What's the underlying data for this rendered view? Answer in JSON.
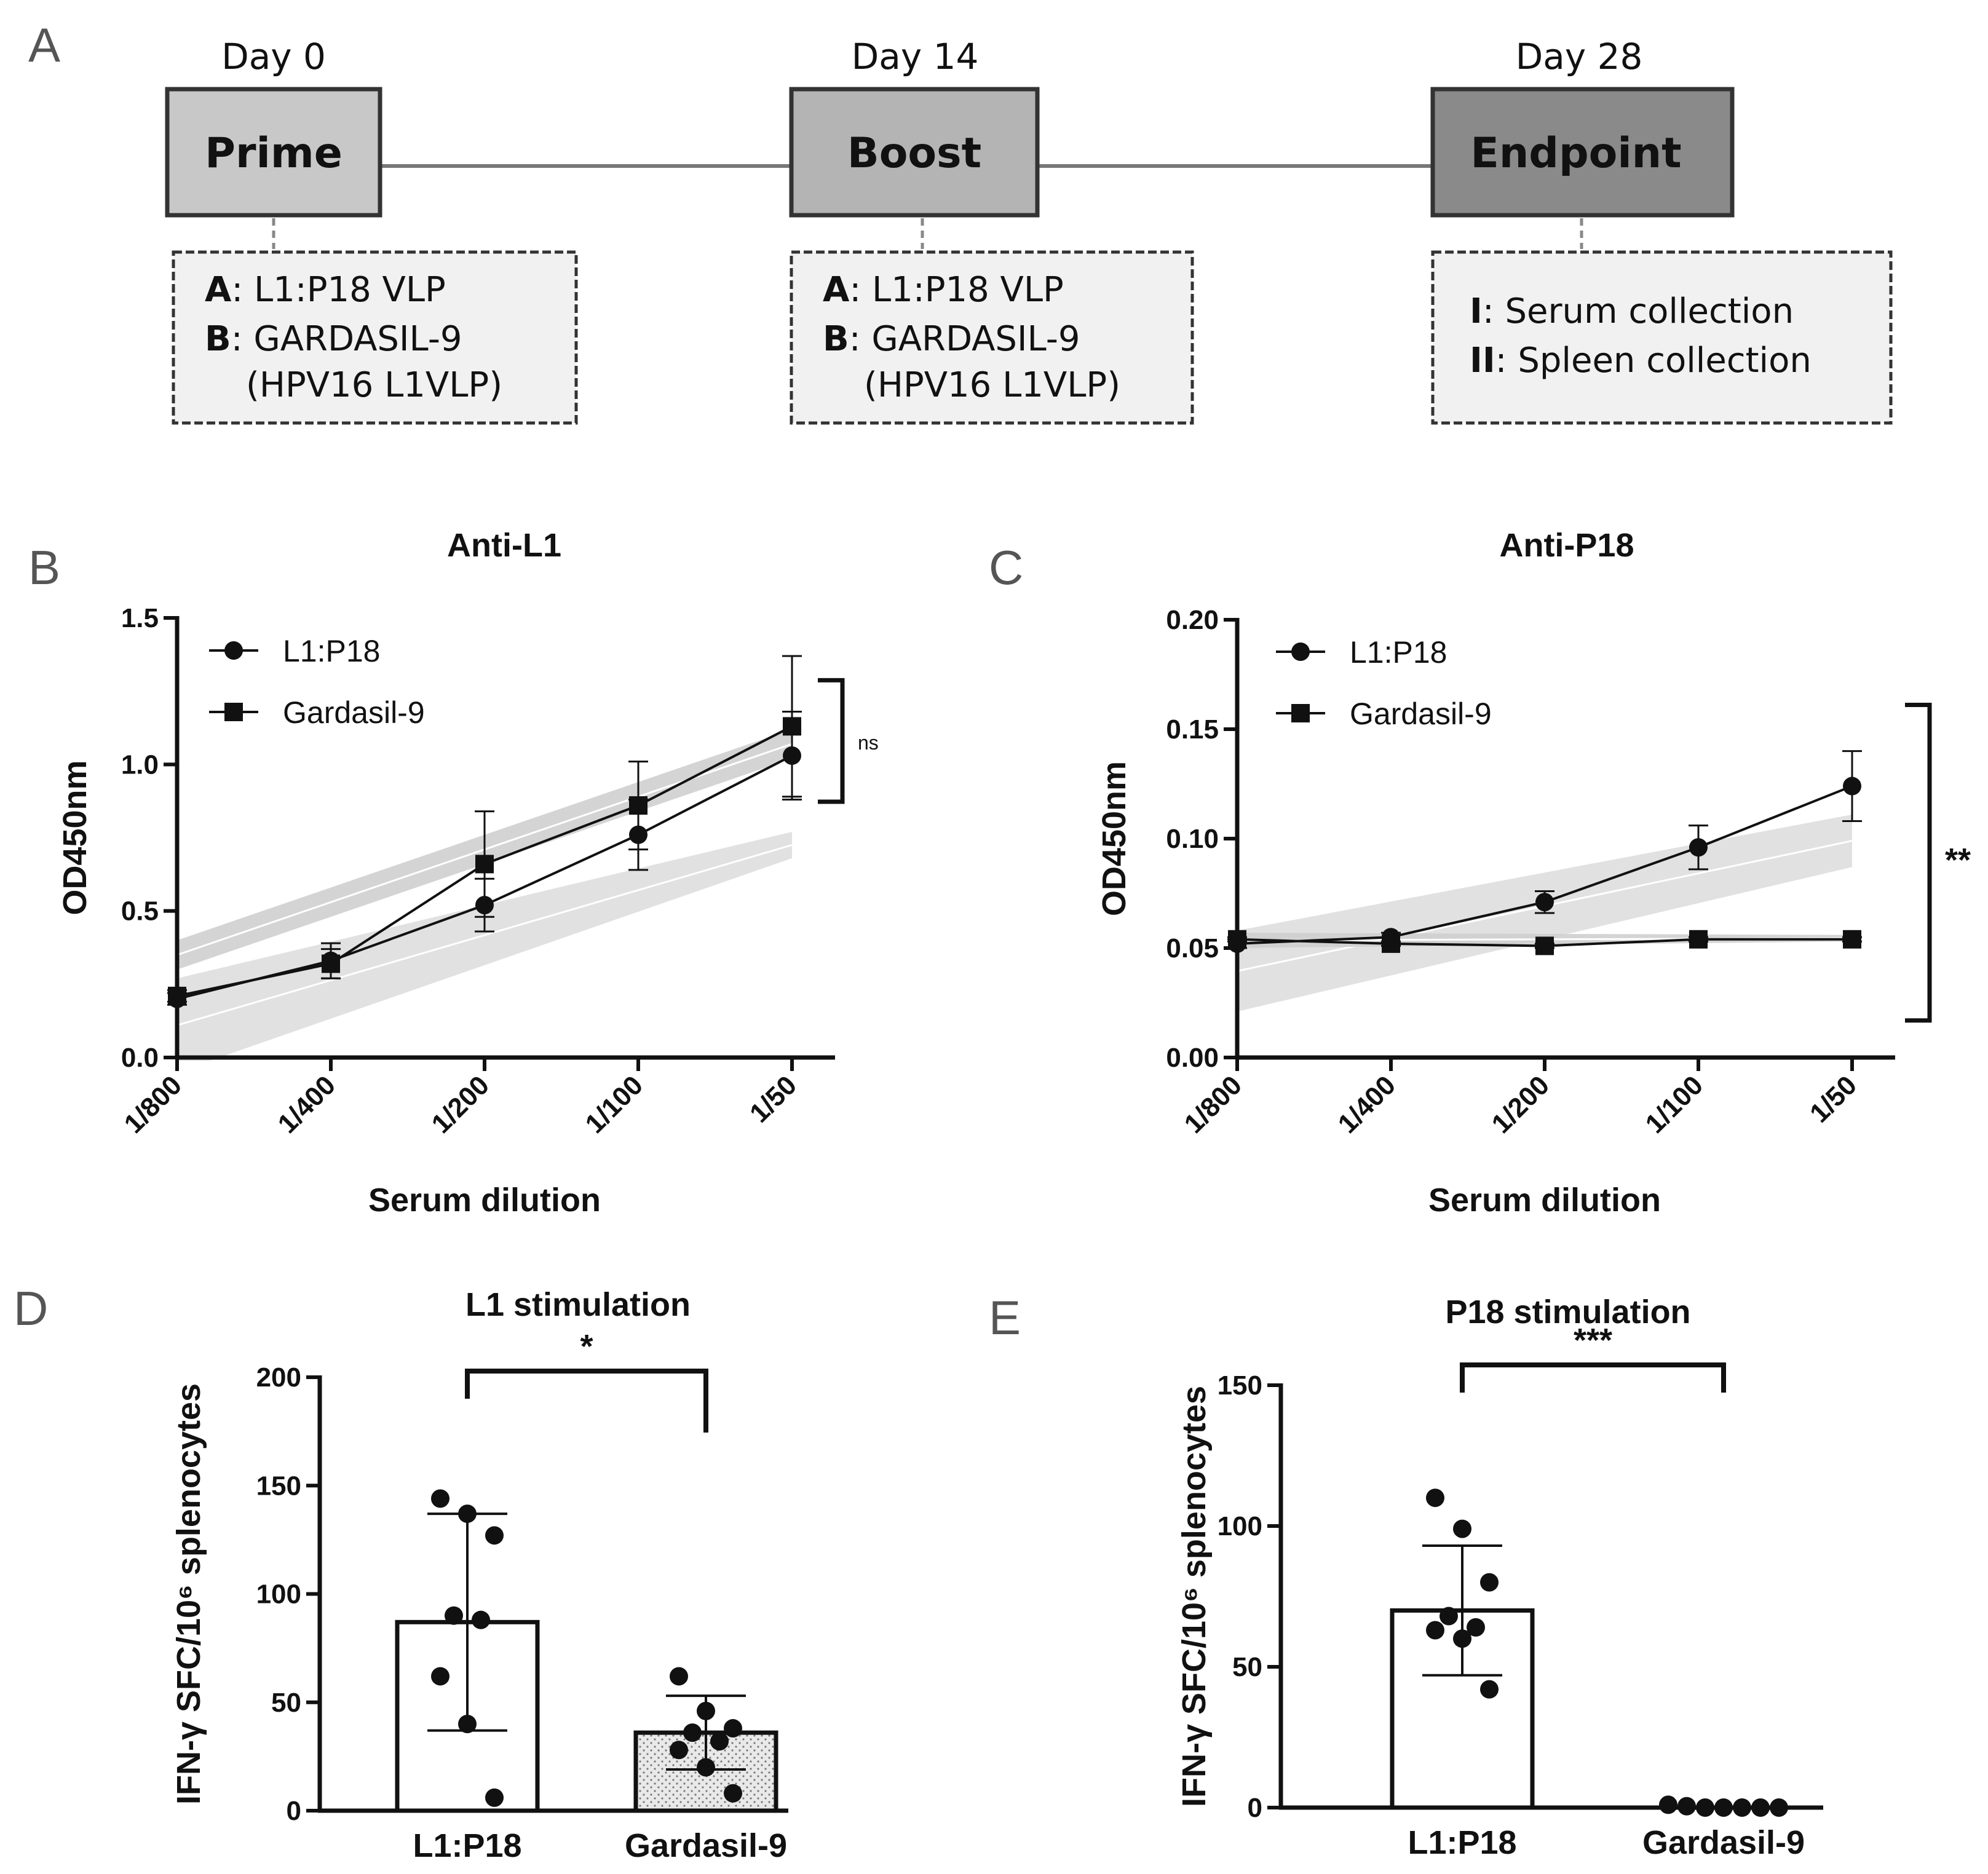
{
  "panel_a": {
    "letter": "A",
    "steps": [
      {
        "day": "Day 0",
        "title": "Prime",
        "fill": "#c8c8c8",
        "lines": [
          {
            "bold": "A",
            "rest": ": L1:P18 VLP"
          },
          {
            "bold": "B",
            "rest": ": GARDASIL-9"
          },
          {
            "bold": "",
            "rest": "(HPV16 L1VLP)"
          }
        ]
      },
      {
        "day": "Day 14",
        "title": "Boost",
        "fill": "#b4b4b4",
        "lines": [
          {
            "bold": "A",
            "rest": ": L1:P18 VLP"
          },
          {
            "bold": "B",
            "rest": ": GARDASIL-9"
          },
          {
            "bold": "",
            "rest": "(HPV16 L1VLP)"
          }
        ]
      },
      {
        "day": "Day 28",
        "title": "Endpoint",
        "fill": "#8a8a8a",
        "lines": [
          {
            "bold": "I",
            "rest": ": Serum collection"
          },
          {
            "bold": "II",
            "rest": ": Spleen collection"
          }
        ]
      }
    ]
  },
  "chart_data": [
    {
      "panel": "B",
      "type": "line",
      "title": "Anti-L1",
      "xlabel": "Serum dilution",
      "ylabel": "OD450nm",
      "x_scale": "log2",
      "categories": [
        "1/800",
        "1/400",
        "1/200",
        "1/100",
        "1/50"
      ],
      "x": [
        1,
        2,
        4,
        8,
        16
      ],
      "ylim": [
        0.0,
        1.5
      ],
      "yticks": [
        0.0,
        0.5,
        1.0,
        1.5
      ],
      "ytick_labels": [
        "0.0",
        "0.5",
        "1.0",
        "1.5"
      ],
      "legend_position": "top-left",
      "series": [
        {
          "name": "L1:P18",
          "marker": "circle",
          "values": [
            0.2,
            0.33,
            0.52,
            0.76,
            1.03
          ],
          "err": [
            0.02,
            0.06,
            0.09,
            0.12,
            0.15
          ]
        },
        {
          "name": "Gardasil-9",
          "marker": "square",
          "values": [
            0.21,
            0.32,
            0.66,
            0.86,
            1.13
          ],
          "err": [
            0.02,
            0.05,
            0.18,
            0.15,
            0.24
          ]
        }
      ],
      "fit_bands": [
        {
          "series": "L1:P18",
          "x": [
            1,
            16
          ],
          "lower": [
            -0.05,
            0.68
          ],
          "upper": [
            0.27,
            0.77
          ]
        },
        {
          "series": "Gardasil-9",
          "x": [
            1,
            16
          ],
          "lower": [
            0.3,
            1.02
          ],
          "upper": [
            0.4,
            1.12
          ]
        }
      ],
      "significance": "ns"
    },
    {
      "panel": "C",
      "type": "line",
      "title": "Anti-P18",
      "xlabel": "Serum dilution",
      "ylabel": "OD450nm",
      "x_scale": "log2",
      "categories": [
        "1/800",
        "1/400",
        "1/200",
        "1/100",
        "1/50"
      ],
      "x": [
        1,
        2,
        4,
        8,
        16
      ],
      "ylim": [
        0.0,
        0.2
      ],
      "yticks": [
        0.0,
        0.05,
        0.1,
        0.15,
        0.2
      ],
      "ytick_labels": [
        "0.00",
        "0.05",
        "0.10",
        "0.15",
        "0.20"
      ],
      "legend_position": "top-left",
      "series": [
        {
          "name": "L1:P18",
          "marker": "circle",
          "values": [
            0.052,
            0.055,
            0.071,
            0.096,
            0.124
          ],
          "err": [
            0.002,
            0.002,
            0.005,
            0.01,
            0.016
          ]
        },
        {
          "name": "Gardasil-9",
          "marker": "square",
          "values": [
            0.054,
            0.052,
            0.051,
            0.054,
            0.054
          ],
          "err": [
            0.001,
            0.001,
            0.001,
            0.001,
            0.001
          ]
        }
      ],
      "fit_bands": [
        {
          "series": "L1:P18",
          "x": [
            1,
            16
          ],
          "lower": [
            0.021,
            0.087
          ],
          "upper": [
            0.058,
            0.111
          ]
        },
        {
          "series": "Gardasil-9",
          "x": [
            1,
            16
          ],
          "lower": [
            0.05,
            0.053
          ],
          "upper": [
            0.057,
            0.056
          ]
        }
      ],
      "significance": "**"
    },
    {
      "panel": "D",
      "type": "bar",
      "title": "L1 stimulation",
      "ylabel": "IFN-γ SFC/10⁶ splenocytes",
      "categories": [
        "L1:P18",
        "Gardasil-9"
      ],
      "values": [
        87,
        36
      ],
      "err_low": [
        37,
        19
      ],
      "err_high": [
        137,
        53
      ],
      "ylim": [
        0,
        200
      ],
      "yticks": [
        0,
        50,
        100,
        150,
        200
      ],
      "ytick_labels": [
        "0",
        "50",
        "100",
        "150",
        "200"
      ],
      "bar_fills": [
        "#ffffff",
        "dotted"
      ],
      "points": [
        [
          144,
          137,
          127,
          90,
          88,
          62,
          40,
          6
        ],
        [
          62,
          46,
          38,
          36,
          32,
          28,
          20,
          8
        ]
      ],
      "significance": "*"
    },
    {
      "panel": "E",
      "type": "bar",
      "title": "P18 stimulation",
      "ylabel": "IFN-γ SFC/10⁶ splenocytes",
      "categories": [
        "L1:P18",
        "Gardasil-9"
      ],
      "values": [
        70,
        0
      ],
      "err_low": [
        47,
        0
      ],
      "err_high": [
        93,
        0
      ],
      "ylim": [
        0,
        150
      ],
      "yticks": [
        0,
        50,
        100,
        150
      ],
      "ytick_labels": [
        "0",
        "50",
        "100",
        "150"
      ],
      "bar_fills": [
        "#ffffff",
        "#ffffff"
      ],
      "points": [
        [
          110,
          99,
          80,
          68,
          64,
          63,
          60,
          42
        ],
        [
          1,
          0.5,
          0,
          0,
          0,
          0,
          0
        ]
      ],
      "significance": "***"
    }
  ]
}
